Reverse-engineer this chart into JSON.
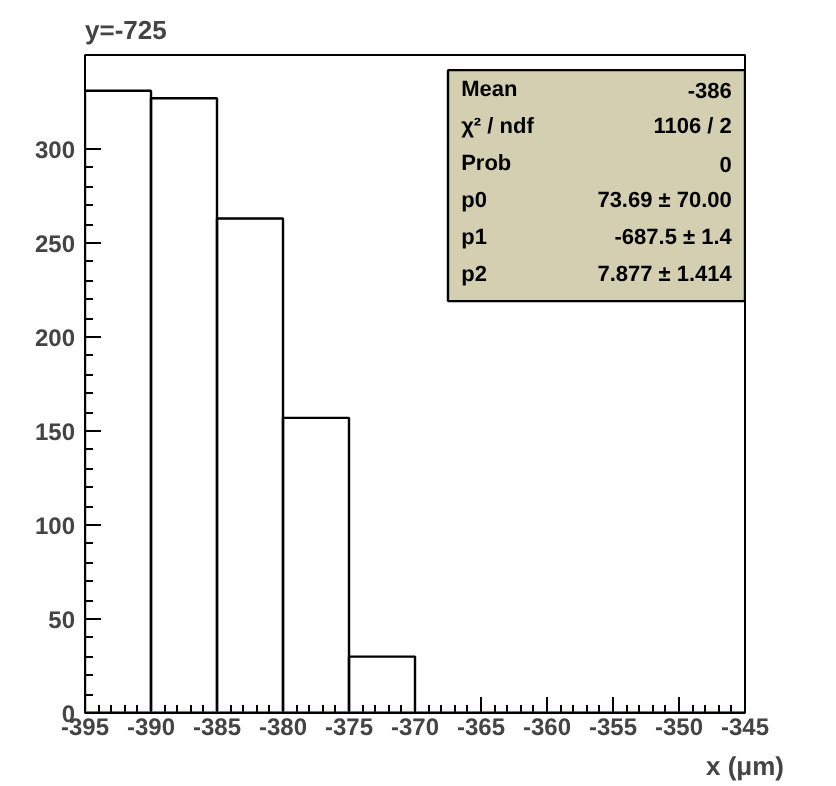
{
  "chart_data": {
    "type": "histogram",
    "title": "y=-725",
    "xlabel": "x (μm)",
    "bins": [
      -395,
      -390,
      -385,
      -380,
      -375,
      -370,
      -365,
      -360,
      -355,
      -350,
      -345
    ],
    "values": [
      331,
      327,
      263,
      157,
      30,
      0,
      0,
      0,
      0,
      0
    ],
    "color": "#000000",
    "series": [
      {
        "type": "line",
        "x": [
          -395,
          -345
        ],
        "values": [
          0,
          0
        ],
        "color": "#00cc00"
      }
    ],
    "xlim": [
      -395,
      -345
    ],
    "ylim": [
      0,
      350
    ],
    "xticks": [
      -395,
      -390,
      -385,
      -380,
      -375,
      -370,
      -365,
      -360,
      -355,
      -350,
      -345
    ],
    "yticks": [
      0,
      50,
      100,
      150,
      200,
      250,
      300
    ],
    "grid": false,
    "annotations": [
      "Mean",
      "-386",
      "χ² / ndf",
      "1106 / 2",
      "Prob",
      "0",
      "p0",
      "73.69 ± 70.00",
      "p1",
      "-687.5 ± 1.4",
      "p2",
      "7.877 ± 1.414"
    ]
  }
}
